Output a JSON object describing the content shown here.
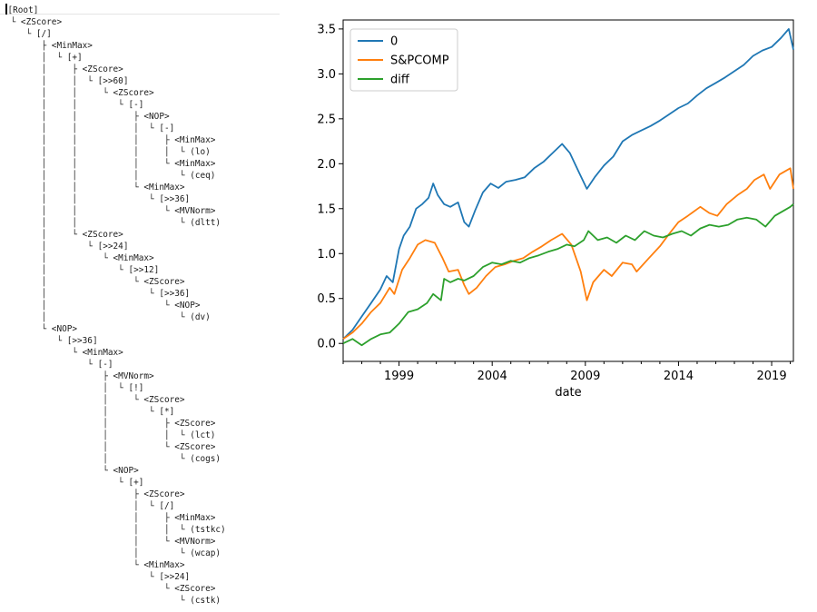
{
  "tree": {
    "lines": [
      "[Root]",
      " └ <ZScore>",
      "    └ [/]",
      "       ├ <MinMax>",
      "       │  └ [+]",
      "       │     ├ <ZScore>",
      "       │     │  └ [>>60]",
      "       │     │     └ <ZScore>",
      "       │     │        └ [-]",
      "       │     │           ├ <NOP>",
      "       │     │           │  └ [-]",
      "       │     │           │     ├ <MinMax>",
      "       │     │           │     │  └ (lo)",
      "       │     │           │     └ <MinMax>",
      "       │     │           │        └ (ceq)",
      "       │     │           └ <MinMax>",
      "       │     │              └ [>>36]",
      "       │     │                 └ <MVNorm>",
      "       │     │                    └ (dltt)",
      "       │     └ <ZScore>",
      "       │        └ [>>24]",
      "       │           └ <MinMax>",
      "       │              └ [>>12]",
      "       │                 └ <ZScore>",
      "       │                    └ [>>36]",
      "       │                       └ <NOP>",
      "       │                          └ (dv)",
      "       └ <NOP>",
      "          └ [>>36]",
      "             └ <MinMax>",
      "                └ [-]",
      "                   ├ <MVNorm>",
      "                   │  └ [!]",
      "                   │     └ <ZScore>",
      "                   │        └ [*]",
      "                   │           ├ <ZScore>",
      "                   │           │  └ (lct)",
      "                   │           └ <ZScore>",
      "                   │              └ (cogs)",
      "                   └ <NOP>",
      "                      └ [+]",
      "                         ├ <ZScore>",
      "                         │  └ [/]",
      "                         │     ├ <MinMax>",
      "                         │     │  └ (tstkc)",
      "                         │     └ <MVNorm>",
      "                         │        └ (wcap)",
      "                         └ <MinMax>",
      "                            └ [>>24]",
      "                               └ <ZScore>",
      "                                  └ (cstk)"
    ]
  },
  "chart_data": {
    "type": "line",
    "xlabel": "date",
    "ylabel": "",
    "xlim": [
      "1996-01",
      "2020-03"
    ],
    "ylim": [
      -0.2,
      3.6
    ],
    "xticks": [
      "1999",
      "2004",
      "2009",
      "2014",
      "2019"
    ],
    "yticks": [
      "0.0",
      "0.5",
      "1.0",
      "1.5",
      "2.0",
      "2.5",
      "3.0",
      "3.5"
    ],
    "legend_position": "upper-left",
    "series": [
      {
        "name": "0",
        "color": "#1f77b4",
        "points": [
          [
            "1996-01",
            0.05
          ],
          [
            "1996-07",
            0.15
          ],
          [
            "1997-01",
            0.3
          ],
          [
            "1997-07",
            0.45
          ],
          [
            "1998-01",
            0.6
          ],
          [
            "1998-05",
            0.75
          ],
          [
            "1998-09",
            0.68
          ],
          [
            "1999-01",
            1.05
          ],
          [
            "1999-04",
            1.2
          ],
          [
            "1999-08",
            1.3
          ],
          [
            "1999-12",
            1.5
          ],
          [
            "2000-04",
            1.55
          ],
          [
            "2000-08",
            1.62
          ],
          [
            "2000-11",
            1.78
          ],
          [
            "2001-02",
            1.65
          ],
          [
            "2001-06",
            1.55
          ],
          [
            "2001-10",
            1.52
          ],
          [
            "2002-03",
            1.57
          ],
          [
            "2002-07",
            1.35
          ],
          [
            "2002-10",
            1.3
          ],
          [
            "2003-02",
            1.48
          ],
          [
            "2003-07",
            1.68
          ],
          [
            "2003-12",
            1.78
          ],
          [
            "2004-05",
            1.73
          ],
          [
            "2004-10",
            1.8
          ],
          [
            "2005-04",
            1.82
          ],
          [
            "2005-10",
            1.85
          ],
          [
            "2006-04",
            1.95
          ],
          [
            "2006-10",
            2.02
          ],
          [
            "2007-04",
            2.12
          ],
          [
            "2007-10",
            2.22
          ],
          [
            "2008-03",
            2.12
          ],
          [
            "2008-09",
            1.9
          ],
          [
            "2009-02",
            1.72
          ],
          [
            "2009-07",
            1.85
          ],
          [
            "2010-01",
            1.98
          ],
          [
            "2010-07",
            2.08
          ],
          [
            "2011-01",
            2.25
          ],
          [
            "2011-07",
            2.32
          ],
          [
            "2012-01",
            2.37
          ],
          [
            "2012-07",
            2.42
          ],
          [
            "2013-01",
            2.48
          ],
          [
            "2013-07",
            2.55
          ],
          [
            "2014-01",
            2.62
          ],
          [
            "2014-07",
            2.67
          ],
          [
            "2015-01",
            2.76
          ],
          [
            "2015-07",
            2.84
          ],
          [
            "2016-01",
            2.9
          ],
          [
            "2016-07",
            2.96
          ],
          [
            "2017-01",
            3.03
          ],
          [
            "2017-07",
            3.1
          ],
          [
            "2018-01",
            3.2
          ],
          [
            "2018-07",
            3.26
          ],
          [
            "2019-01",
            3.3
          ],
          [
            "2019-07",
            3.4
          ],
          [
            "2019-12",
            3.5
          ],
          [
            "2020-03",
            3.27
          ]
        ]
      },
      {
        "name": "S&PCOMP",
        "color": "#ff7f0e",
        "points": [
          [
            "1996-01",
            0.05
          ],
          [
            "1996-07",
            0.12
          ],
          [
            "1997-01",
            0.22
          ],
          [
            "1997-07",
            0.35
          ],
          [
            "1998-01",
            0.45
          ],
          [
            "1998-07",
            0.62
          ],
          [
            "1998-10",
            0.55
          ],
          [
            "1999-03",
            0.82
          ],
          [
            "1999-08",
            0.95
          ],
          [
            "2000-01",
            1.1
          ],
          [
            "2000-06",
            1.15
          ],
          [
            "2000-12",
            1.12
          ],
          [
            "2001-05",
            0.95
          ],
          [
            "2001-09",
            0.8
          ],
          [
            "2002-03",
            0.82
          ],
          [
            "2002-07",
            0.65
          ],
          [
            "2002-10",
            0.55
          ],
          [
            "2003-03",
            0.62
          ],
          [
            "2003-09",
            0.75
          ],
          [
            "2004-03",
            0.85
          ],
          [
            "2004-09",
            0.88
          ],
          [
            "2005-03",
            0.92
          ],
          [
            "2005-09",
            0.95
          ],
          [
            "2006-03",
            1.02
          ],
          [
            "2006-09",
            1.08
          ],
          [
            "2007-03",
            1.15
          ],
          [
            "2007-10",
            1.22
          ],
          [
            "2008-04",
            1.1
          ],
          [
            "2008-10",
            0.8
          ],
          [
            "2009-02",
            0.48
          ],
          [
            "2009-06",
            0.68
          ],
          [
            "2010-01",
            0.82
          ],
          [
            "2010-06",
            0.75
          ],
          [
            "2011-01",
            0.9
          ],
          [
            "2011-07",
            0.88
          ],
          [
            "2011-10",
            0.8
          ],
          [
            "2012-06",
            0.95
          ],
          [
            "2013-01",
            1.08
          ],
          [
            "2013-07",
            1.22
          ],
          [
            "2014-01",
            1.35
          ],
          [
            "2014-07",
            1.42
          ],
          [
            "2015-03",
            1.52
          ],
          [
            "2015-09",
            1.45
          ],
          [
            "2016-02",
            1.42
          ],
          [
            "2016-08",
            1.55
          ],
          [
            "2017-03",
            1.65
          ],
          [
            "2017-09",
            1.72
          ],
          [
            "2018-02",
            1.82
          ],
          [
            "2018-08",
            1.88
          ],
          [
            "2018-12",
            1.72
          ],
          [
            "2019-06",
            1.88
          ],
          [
            "2020-01",
            1.95
          ],
          [
            "2020-03",
            1.72
          ]
        ]
      },
      {
        "name": "diff",
        "color": "#2ca02c",
        "points": [
          [
            "1996-01",
            0.0
          ],
          [
            "1996-07",
            0.05
          ],
          [
            "1997-01",
            -0.02
          ],
          [
            "1997-07",
            0.05
          ],
          [
            "1998-01",
            0.1
          ],
          [
            "1998-07",
            0.12
          ],
          [
            "1999-01",
            0.22
          ],
          [
            "1999-07",
            0.35
          ],
          [
            "2000-01",
            0.38
          ],
          [
            "2000-07",
            0.45
          ],
          [
            "2000-11",
            0.55
          ],
          [
            "2001-04",
            0.48
          ],
          [
            "2001-06",
            0.72
          ],
          [
            "2001-10",
            0.68
          ],
          [
            "2002-03",
            0.72
          ],
          [
            "2002-07",
            0.7
          ],
          [
            "2003-01",
            0.75
          ],
          [
            "2003-07",
            0.85
          ],
          [
            "2004-01",
            0.9
          ],
          [
            "2004-07",
            0.88
          ],
          [
            "2005-01",
            0.92
          ],
          [
            "2005-07",
            0.9
          ],
          [
            "2006-01",
            0.95
          ],
          [
            "2006-07",
            0.98
          ],
          [
            "2007-01",
            1.02
          ],
          [
            "2007-07",
            1.05
          ],
          [
            "2008-01",
            1.1
          ],
          [
            "2008-06",
            1.08
          ],
          [
            "2008-12",
            1.15
          ],
          [
            "2009-03",
            1.25
          ],
          [
            "2009-09",
            1.15
          ],
          [
            "2010-03",
            1.18
          ],
          [
            "2010-09",
            1.12
          ],
          [
            "2011-03",
            1.2
          ],
          [
            "2011-09",
            1.15
          ],
          [
            "2012-03",
            1.25
          ],
          [
            "2012-09",
            1.2
          ],
          [
            "2013-03",
            1.18
          ],
          [
            "2013-09",
            1.22
          ],
          [
            "2014-03",
            1.25
          ],
          [
            "2014-09",
            1.2
          ],
          [
            "2015-03",
            1.28
          ],
          [
            "2015-09",
            1.32
          ],
          [
            "2016-03",
            1.3
          ],
          [
            "2016-09",
            1.32
          ],
          [
            "2017-03",
            1.38
          ],
          [
            "2017-09",
            1.4
          ],
          [
            "2018-03",
            1.38
          ],
          [
            "2018-09",
            1.3
          ],
          [
            "2019-03",
            1.42
          ],
          [
            "2019-09",
            1.48
          ],
          [
            "2020-01",
            1.52
          ],
          [
            "2020-03",
            1.55
          ]
        ]
      }
    ]
  }
}
